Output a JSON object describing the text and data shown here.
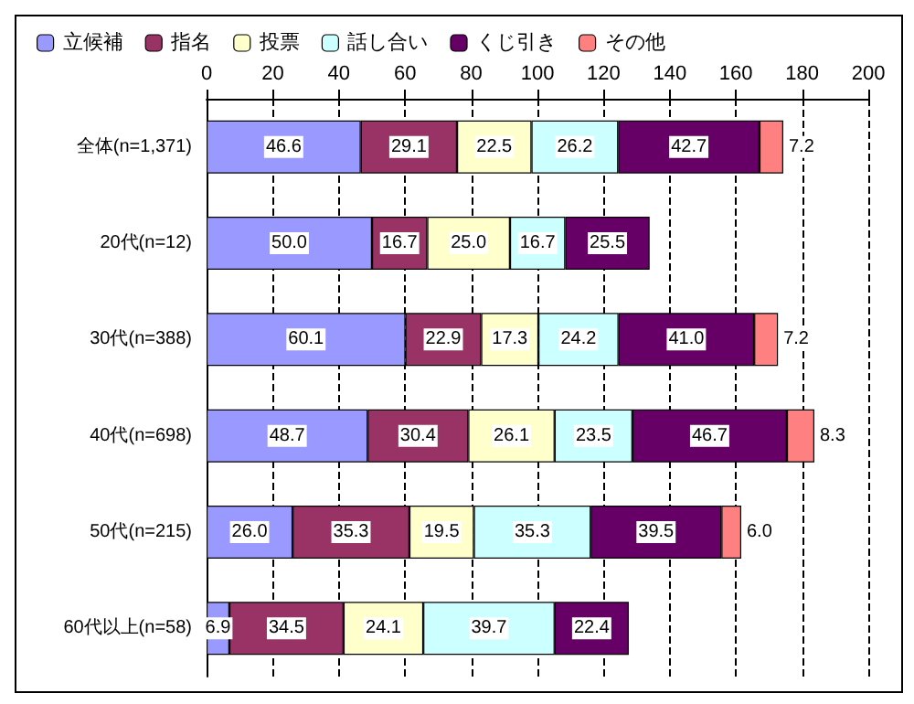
{
  "chart_data": {
    "type": "bar",
    "orientation": "horizontal",
    "stacked": true,
    "categories": [
      "全体(n=1,371)",
      "20代(n=12)",
      "30代(n=388)",
      "40代(n=698)",
      "50代(n=215)",
      "60代以上(n=58)"
    ],
    "series": [
      {
        "name": "立候補",
        "color": "#9999ff",
        "values": [
          46.6,
          50.0,
          60.1,
          48.7,
          26.0,
          6.9
        ],
        "value_labels": [
          "46.6",
          "50.0",
          "60.1",
          "48.7",
          "26.0",
          "6.9"
        ]
      },
      {
        "name": "指名",
        "color": "#993366",
        "values": [
          29.1,
          16.7,
          22.9,
          30.4,
          35.3,
          34.5
        ],
        "value_labels": [
          "29.1",
          "16.7",
          "22.9",
          "30.4",
          "35.3",
          "34.5"
        ]
      },
      {
        "name": "投票",
        "color": "#ffffcc",
        "values": [
          22.5,
          25.0,
          17.3,
          26.1,
          19.5,
          24.1
        ],
        "value_labels": [
          "22.5",
          "25.0",
          "17.3",
          "26.1",
          "19.5",
          "24.1"
        ]
      },
      {
        "name": "話し合い",
        "color": "#ccffff",
        "values": [
          26.2,
          16.7,
          24.2,
          23.5,
          35.3,
          39.7
        ],
        "value_labels": [
          "26.2",
          "16.7",
          "24.2",
          "23.5",
          "35.3",
          "39.7"
        ]
      },
      {
        "name": "くじ引き",
        "color": "#660066",
        "values": [
          42.7,
          25.5,
          41.0,
          46.7,
          39.5,
          22.4
        ],
        "value_labels": [
          "42.7",
          "25.5",
          "41.0",
          "46.7",
          "39.5",
          "22.4"
        ]
      },
      {
        "name": "その他",
        "color": "#ff8080",
        "values": [
          7.2,
          null,
          7.2,
          8.3,
          6.0,
          null
        ],
        "value_labels": [
          "7.2",
          null,
          "7.2",
          "8.3",
          "6.0",
          null
        ]
      }
    ],
    "xlim": [
      0,
      200
    ],
    "xticks": [
      0,
      20,
      40,
      60,
      80,
      100,
      120,
      140,
      160,
      180,
      200
    ],
    "grid": "x",
    "legend": "top"
  }
}
